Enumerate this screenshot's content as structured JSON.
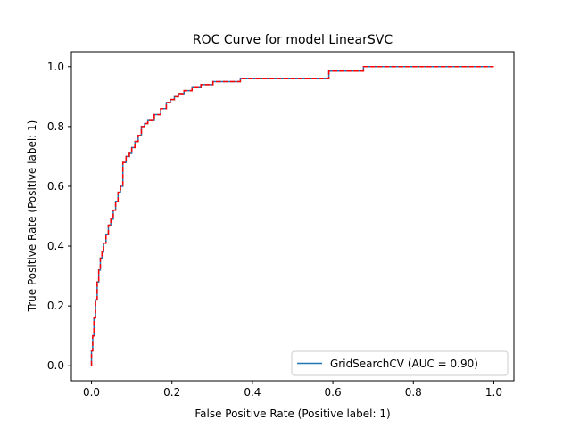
{
  "chart_data": {
    "type": "line",
    "title": "ROC Curve for model LinearSVC",
    "xlabel": "False Positive Rate (Positive label: 1)",
    "ylabel": "True Positive Rate (Positive label: 1)",
    "xlim": [
      -0.05,
      1.05
    ],
    "ylim": [
      -0.05,
      1.05
    ],
    "xticks": [
      "0.0",
      "0.2",
      "0.4",
      "0.6",
      "0.8",
      "1.0"
    ],
    "yticks": [
      "0.0",
      "0.2",
      "0.4",
      "0.6",
      "0.8",
      "1.0"
    ],
    "grid": false,
    "legend": {
      "placement": "lower-right",
      "entries": [
        "GridSearchCV (AUC = 0.90)"
      ]
    },
    "series": [
      {
        "name": "GridSearchCV (AUC = 0.90)",
        "color": "#1f77b4",
        "style": "solid",
        "x": [
          0.0,
          0.0,
          0.003,
          0.003,
          0.006,
          0.006,
          0.01,
          0.01,
          0.014,
          0.014,
          0.018,
          0.018,
          0.022,
          0.022,
          0.026,
          0.026,
          0.03,
          0.03,
          0.036,
          0.036,
          0.042,
          0.042,
          0.048,
          0.048,
          0.054,
          0.054,
          0.06,
          0.06,
          0.066,
          0.066,
          0.072,
          0.072,
          0.078,
          0.078,
          0.086,
          0.086,
          0.094,
          0.094,
          0.1,
          0.1,
          0.108,
          0.108,
          0.116,
          0.116,
          0.124,
          0.124,
          0.132,
          0.132,
          0.14,
          0.14,
          0.148,
          0.148,
          0.156,
          0.156,
          0.172,
          0.172,
          0.186,
          0.186,
          0.196,
          0.196,
          0.206,
          0.206,
          0.216,
          0.216,
          0.23,
          0.23,
          0.25,
          0.25,
          0.272,
          0.272,
          0.302,
          0.302,
          0.37,
          0.37,
          0.59,
          0.59,
          0.676,
          0.676,
          1.0
        ],
        "y": [
          0.0,
          0.05,
          0.05,
          0.1,
          0.1,
          0.16,
          0.16,
          0.22,
          0.22,
          0.28,
          0.28,
          0.32,
          0.32,
          0.36,
          0.36,
          0.38,
          0.38,
          0.41,
          0.41,
          0.44,
          0.44,
          0.47,
          0.47,
          0.49,
          0.49,
          0.52,
          0.52,
          0.55,
          0.55,
          0.58,
          0.58,
          0.6,
          0.6,
          0.68,
          0.68,
          0.7,
          0.7,
          0.71,
          0.71,
          0.73,
          0.73,
          0.75,
          0.75,
          0.77,
          0.77,
          0.8,
          0.8,
          0.81,
          0.81,
          0.82,
          0.82,
          0.82,
          0.82,
          0.84,
          0.84,
          0.86,
          0.86,
          0.88,
          0.88,
          0.89,
          0.89,
          0.9,
          0.9,
          0.91,
          0.91,
          0.92,
          0.92,
          0.93,
          0.93,
          0.94,
          0.94,
          0.95,
          0.95,
          0.96,
          0.96,
          0.985,
          0.985,
          1.0,
          1.0
        ]
      },
      {
        "color": "#ff0000",
        "style": "dashed",
        "x": [
          0.0,
          0.0,
          0.003,
          0.003,
          0.006,
          0.006,
          0.01,
          0.01,
          0.014,
          0.014,
          0.018,
          0.018,
          0.022,
          0.022,
          0.026,
          0.026,
          0.03,
          0.03,
          0.036,
          0.036,
          0.042,
          0.042,
          0.048,
          0.048,
          0.054,
          0.054,
          0.06,
          0.06,
          0.066,
          0.066,
          0.072,
          0.072,
          0.078,
          0.078,
          0.086,
          0.086,
          0.094,
          0.094,
          0.1,
          0.1,
          0.108,
          0.108,
          0.116,
          0.116,
          0.124,
          0.124,
          0.132,
          0.132,
          0.14,
          0.14,
          0.148,
          0.148,
          0.156,
          0.156,
          0.172,
          0.172,
          0.186,
          0.186,
          0.196,
          0.196,
          0.206,
          0.206,
          0.216,
          0.216,
          0.23,
          0.23,
          0.25,
          0.25,
          0.272,
          0.272,
          0.302,
          0.302,
          0.37,
          0.37,
          0.59,
          0.59,
          0.676,
          0.676,
          1.0
        ],
        "y": [
          0.0,
          0.05,
          0.05,
          0.1,
          0.1,
          0.16,
          0.16,
          0.22,
          0.22,
          0.28,
          0.28,
          0.32,
          0.32,
          0.36,
          0.36,
          0.38,
          0.38,
          0.41,
          0.41,
          0.44,
          0.44,
          0.47,
          0.47,
          0.49,
          0.49,
          0.52,
          0.52,
          0.55,
          0.55,
          0.58,
          0.58,
          0.6,
          0.6,
          0.68,
          0.68,
          0.7,
          0.7,
          0.71,
          0.71,
          0.73,
          0.73,
          0.75,
          0.75,
          0.77,
          0.77,
          0.8,
          0.8,
          0.81,
          0.81,
          0.82,
          0.82,
          0.82,
          0.82,
          0.84,
          0.84,
          0.86,
          0.86,
          0.88,
          0.88,
          0.89,
          0.89,
          0.9,
          0.9,
          0.91,
          0.91,
          0.92,
          0.92,
          0.93,
          0.93,
          0.94,
          0.94,
          0.95,
          0.95,
          0.96,
          0.96,
          0.985,
          0.985,
          1.0,
          1.0
        ]
      }
    ]
  }
}
